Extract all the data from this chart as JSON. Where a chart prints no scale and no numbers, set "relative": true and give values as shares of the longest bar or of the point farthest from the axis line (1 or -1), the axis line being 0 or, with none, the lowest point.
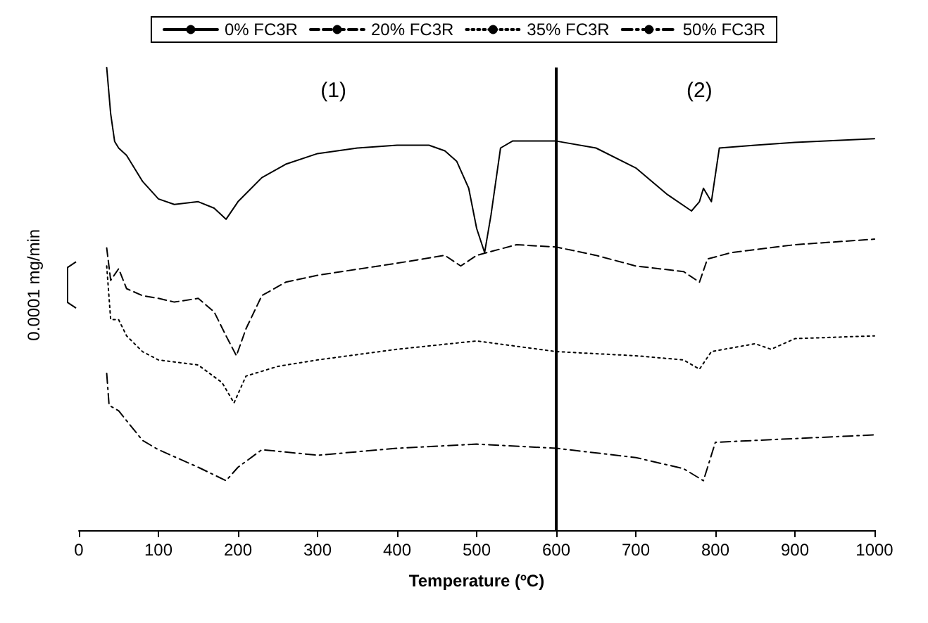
{
  "chart_data": {
    "type": "line",
    "relative": true,
    "xlabel": "Temperature (ºC)",
    "ylabel": "0.0001 mg/min",
    "xlim": [
      0,
      1000
    ],
    "xticks": [
      0,
      100,
      200,
      300,
      400,
      500,
      600,
      700,
      800,
      900,
      1000
    ],
    "grid": false,
    "legend": "top",
    "marker": "none",
    "tick_labels": "x",
    "ref_lines": [
      {
        "axis": "x",
        "value": 600,
        "color": "#000000"
      }
    ],
    "annotations": [
      "(1)",
      "(2)"
    ],
    "series": [
      {
        "name": "0% FC3R",
        "color": "#000000",
        "line_style": "solid",
        "x": [
          35,
          40,
          45,
          50,
          60,
          80,
          100,
          120,
          150,
          170,
          185,
          200,
          230,
          260,
          300,
          350,
          400,
          440,
          460,
          475,
          490,
          500,
          510,
          518,
          530,
          545,
          600,
          650,
          700,
          740,
          770,
          780,
          785,
          795,
          805,
          850,
          900,
          1000
        ],
        "values": [
          1.0,
          0.9,
          0.84,
          0.826,
          0.81,
          0.754,
          0.716,
          0.704,
          0.71,
          0.696,
          0.672,
          0.71,
          0.762,
          0.791,
          0.814,
          0.826,
          0.832,
          0.832,
          0.82,
          0.797,
          0.739,
          0.652,
          0.6,
          0.681,
          0.826,
          0.841,
          0.841,
          0.826,
          0.783,
          0.725,
          0.69,
          0.71,
          0.739,
          0.71,
          0.826,
          0.832,
          0.838,
          0.846
        ]
      },
      {
        "name": "20% FC3R",
        "color": "#000000",
        "line_style": "dashed",
        "x": [
          35,
          40,
          50,
          60,
          80,
          100,
          120,
          150,
          170,
          185,
          198,
          210,
          230,
          260,
          300,
          400,
          460,
          480,
          500,
          550,
          600,
          650,
          700,
          760,
          780,
          790,
          820,
          900,
          1000
        ],
        "values": [
          0.61,
          0.54,
          0.565,
          0.522,
          0.507,
          0.501,
          0.493,
          0.501,
          0.472,
          0.42,
          0.377,
          0.435,
          0.507,
          0.536,
          0.551,
          0.577,
          0.594,
          0.571,
          0.594,
          0.617,
          0.612,
          0.594,
          0.571,
          0.559,
          0.536,
          0.586,
          0.6,
          0.617,
          0.629
        ]
      },
      {
        "name": "35% FC3R",
        "color": "#000000",
        "line_style": "dotted",
        "x": [
          35,
          40,
          50,
          60,
          80,
          100,
          150,
          180,
          195,
          210,
          250,
          300,
          400,
          500,
          600,
          700,
          760,
          780,
          795,
          850,
          870,
          900,
          1000
        ],
        "values": [
          0.571,
          0.455,
          0.455,
          0.42,
          0.386,
          0.368,
          0.357,
          0.319,
          0.275,
          0.333,
          0.354,
          0.368,
          0.391,
          0.409,
          0.386,
          0.377,
          0.368,
          0.348,
          0.386,
          0.403,
          0.391,
          0.414,
          0.42
        ]
      },
      {
        "name": "50% FC3R",
        "color": "#000000",
        "line_style": "dashdot",
        "x": [
          35,
          38,
          50,
          80,
          100,
          150,
          185,
          200,
          230,
          300,
          400,
          500,
          600,
          700,
          760,
          785,
          800,
          1000
        ],
        "values": [
          0.339,
          0.27,
          0.258,
          0.194,
          0.174,
          0.136,
          0.107,
          0.136,
          0.174,
          0.162,
          0.177,
          0.186,
          0.177,
          0.157,
          0.133,
          0.107,
          0.19,
          0.206
        ]
      }
    ]
  }
}
